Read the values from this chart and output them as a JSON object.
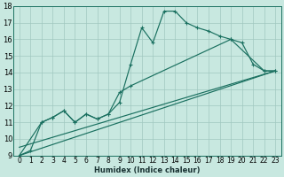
{
  "xlabel": "Humidex (Indice chaleur)",
  "xlim": [
    -0.5,
    23.5
  ],
  "ylim": [
    9,
    18
  ],
  "xtick_labels": [
    "0",
    "1",
    "2",
    "3",
    "4",
    "5",
    "6",
    "7",
    "8",
    "9",
    "10",
    "11",
    "12",
    "13",
    "14",
    "15",
    "16",
    "17",
    "18",
    "19",
    "20",
    "21",
    "22",
    "23"
  ],
  "xticks": [
    0,
    1,
    2,
    3,
    4,
    5,
    6,
    7,
    8,
    9,
    10,
    11,
    12,
    13,
    14,
    15,
    16,
    17,
    18,
    19,
    20,
    21,
    22,
    23
  ],
  "yticks": [
    9,
    10,
    11,
    12,
    13,
    14,
    15,
    16,
    17,
    18
  ],
  "bg_color": "#c8e8e0",
  "grid_color": "#a0c8c0",
  "line_color": "#1a7060",
  "line1_x": [
    0,
    1,
    2,
    3,
    4,
    5,
    6,
    7,
    8,
    9,
    10,
    11,
    12,
    13,
    14,
    15,
    16,
    17,
    18,
    19,
    20,
    21,
    22,
    23
  ],
  "line1_y": [
    9.0,
    9.3,
    11.0,
    11.3,
    11.7,
    11.0,
    11.5,
    11.2,
    11.5,
    12.2,
    14.5,
    16.7,
    15.8,
    17.7,
    17.7,
    17.0,
    16.7,
    16.5,
    16.2,
    16.0,
    15.8,
    14.5,
    14.1,
    14.1
  ],
  "line2_x": [
    0,
    2,
    3,
    4,
    5,
    6,
    7,
    8,
    9,
    10,
    19,
    22,
    23
  ],
  "line2_y": [
    9.0,
    11.0,
    11.3,
    11.7,
    11.0,
    11.5,
    11.2,
    11.5,
    12.8,
    13.2,
    16.0,
    14.1,
    14.1
  ],
  "line3_x": [
    0,
    23
  ],
  "line3_y": [
    9.0,
    14.1
  ],
  "line4_x": [
    0,
    23
  ],
  "line4_y": [
    9.5,
    14.1
  ]
}
